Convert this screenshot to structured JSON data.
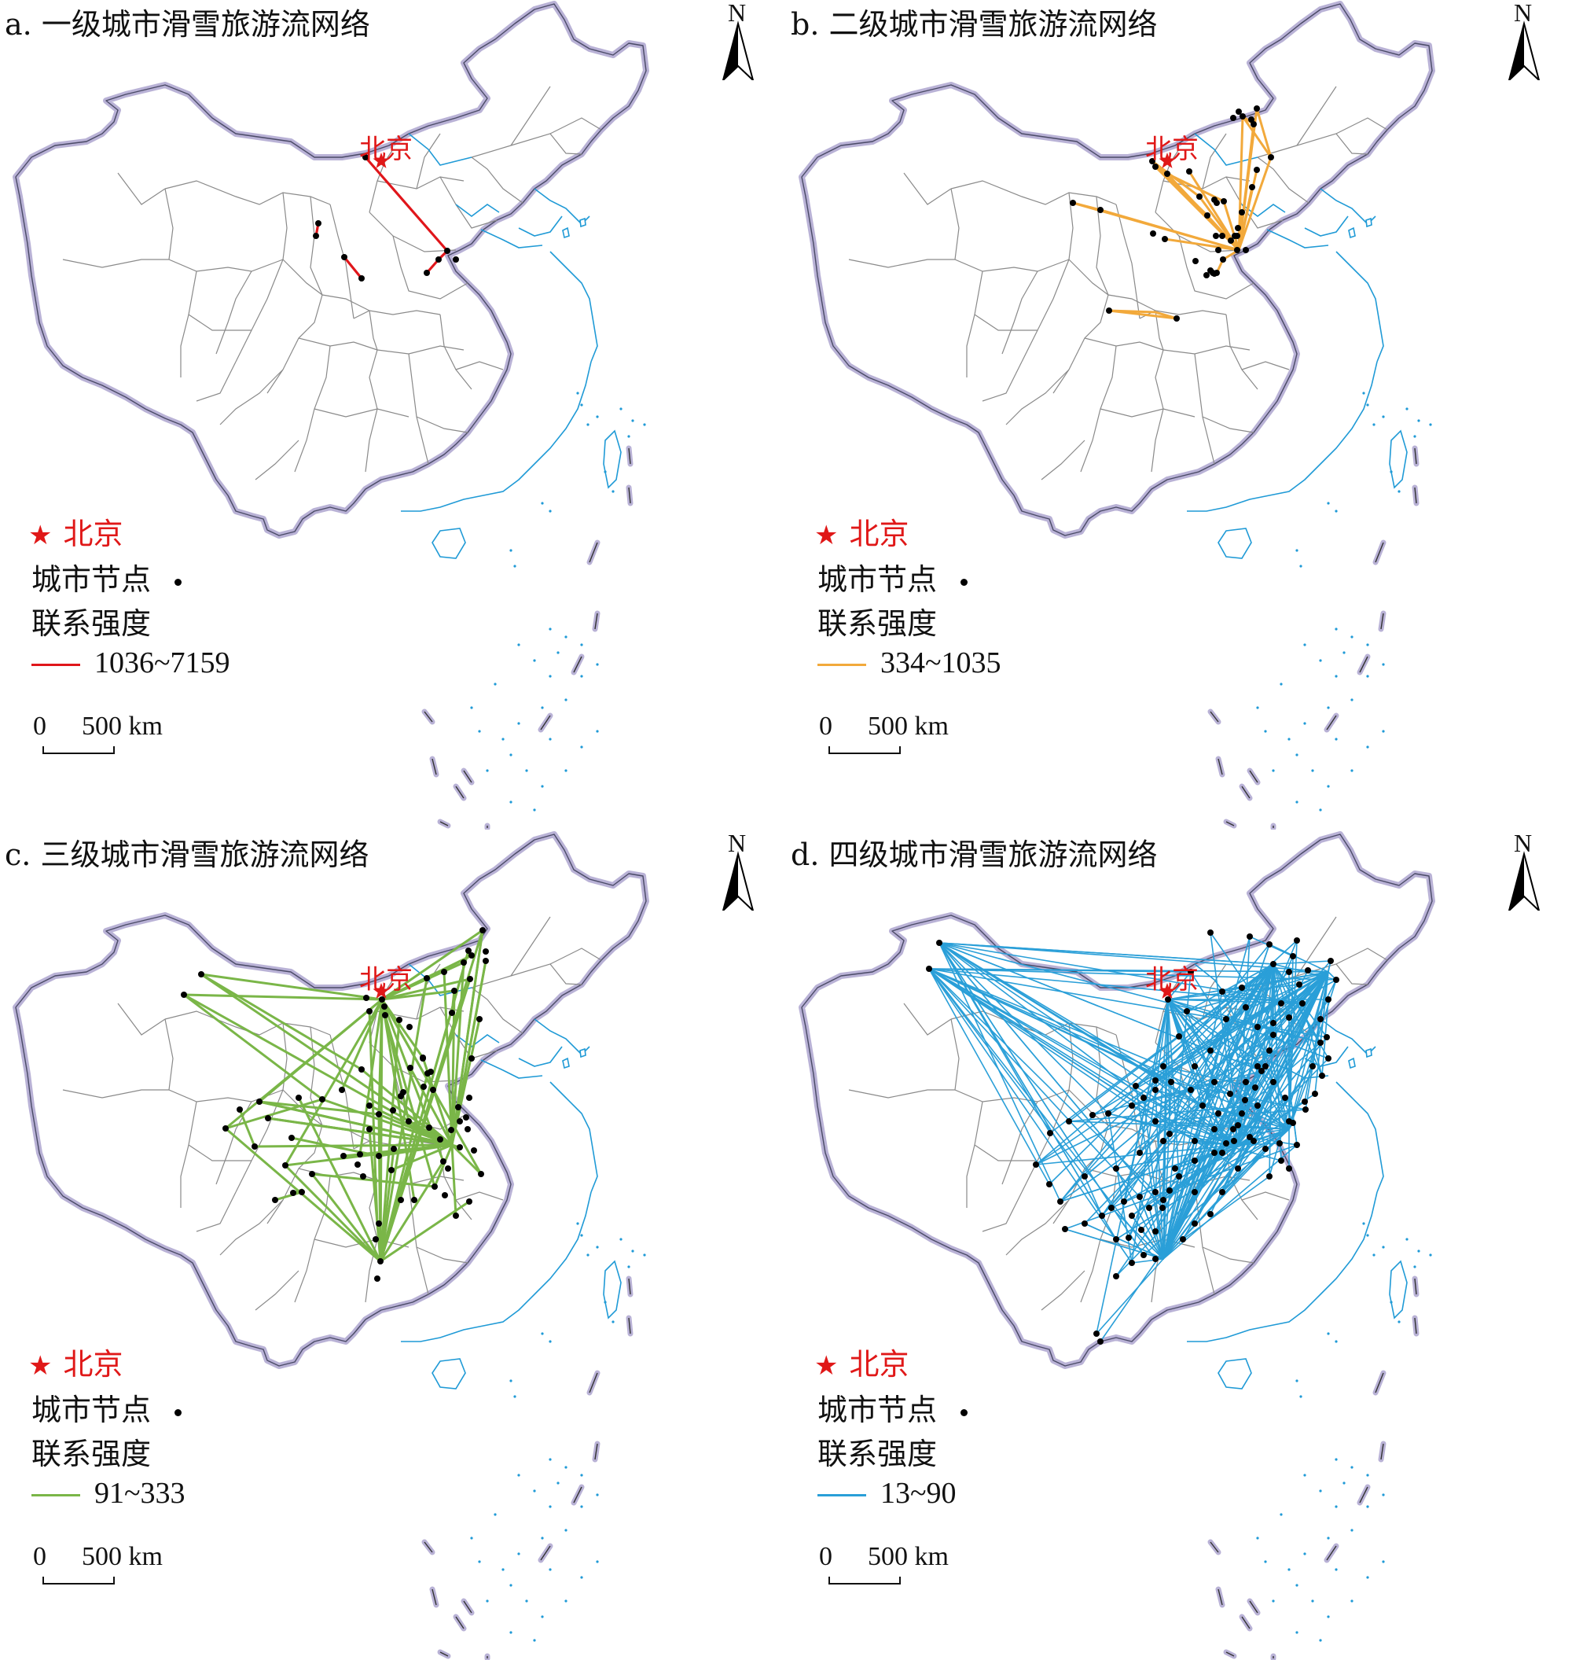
{
  "capital_label": "北京",
  "north_letter": "N",
  "legend": {
    "capital": "北京",
    "node": "城市节点",
    "strength": "联系强度"
  },
  "scale": {
    "zero": "0",
    "distance": "500 km"
  },
  "colors": {
    "capital": "#e01818",
    "border": "#b9b2d6",
    "province": "#8a8a8a",
    "water": "#1f9ad6"
  },
  "panels": [
    {
      "title": "a. 一级城市滑雪旅游流网络",
      "range": "1036~7159",
      "color": "#e0161b",
      "line_width": 3.2
    },
    {
      "title": "b. 二级城市滑雪旅游流网络",
      "range": "334~1035",
      "color": "#f2a93b",
      "line_width": 3.0
    },
    {
      "title": "c. 三级城市滑雪旅游流网络",
      "range": "91~333",
      "color": "#7ab648",
      "line_width": 3.0
    },
    {
      "title": "d. 四级城市滑雪旅游流网络",
      "range": "13~90",
      "color": "#2a9fd8",
      "line_width": 1.6
    }
  ]
}
